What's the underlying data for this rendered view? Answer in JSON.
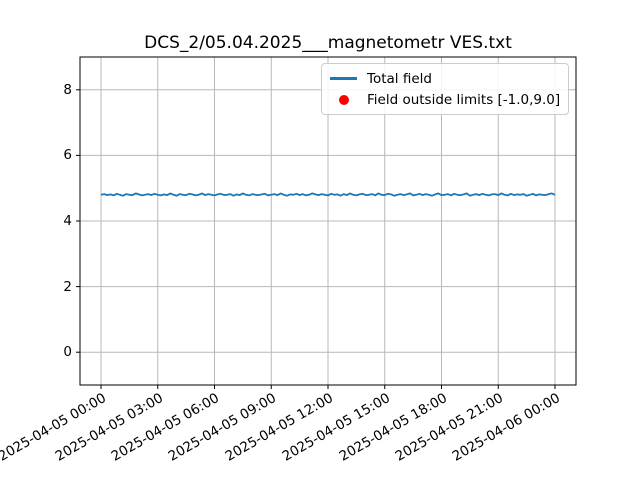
{
  "chart_data": {
    "type": "line",
    "title": "DCS_2/05.04.2025___magnetometr VES.txt",
    "xlabel": "",
    "ylabel": "",
    "grid": true,
    "grid_color": "#b8b8b8",
    "ylim": [
      -1.0,
      9.0
    ],
    "xlim_hours": [
      -1.11,
      25.11
    ],
    "y_ticks": [
      0,
      2,
      4,
      6,
      8
    ],
    "x_tick_hours": [
      0,
      3,
      6,
      9,
      12,
      15,
      18,
      21,
      24
    ],
    "x_tick_labels": [
      "2025-04-05 00:00",
      "2025-04-05 03:00",
      "2025-04-05 06:00",
      "2025-04-05 09:00",
      "2025-04-05 12:00",
      "2025-04-05 15:00",
      "2025-04-05 18:00",
      "2025-04-05 21:00",
      "2025-04-06 00:00"
    ],
    "legend": [
      {
        "label": "Total field",
        "marker": "line",
        "color": "#1f77b4"
      },
      {
        "label": "Field outside limits [-1.0,9.0]",
        "marker": "dot",
        "color": "#ff0000"
      }
    ],
    "series": [
      {
        "name": "Total field",
        "color": "#1f77b4",
        "x_start_hour": 0,
        "x_step_minutes": 10,
        "values": [
          4.8,
          4.82,
          4.79,
          4.81,
          4.78,
          4.83,
          4.8,
          4.77,
          4.82,
          4.8,
          4.79,
          4.84,
          4.81,
          4.78,
          4.8,
          4.82,
          4.79,
          4.83,
          4.8,
          4.78,
          4.81,
          4.79,
          4.84,
          4.8,
          4.77,
          4.82,
          4.8,
          4.79,
          4.83,
          4.81,
          4.78,
          4.8,
          4.84,
          4.79,
          4.82,
          4.8,
          4.78,
          4.81,
          4.83,
          4.79,
          4.8,
          4.82,
          4.77,
          4.81,
          4.79,
          4.84,
          4.8,
          4.78,
          4.82,
          4.8,
          4.79,
          4.81,
          4.83,
          4.78,
          4.8,
          4.82,
          4.79,
          4.84,
          4.8,
          4.77,
          4.81,
          4.8,
          4.83,
          4.79,
          4.82,
          4.78,
          4.8,
          4.84,
          4.81,
          4.79,
          4.82,
          4.8,
          4.78,
          4.83,
          4.8,
          4.81,
          4.77,
          4.82,
          4.79,
          4.84,
          4.8,
          4.78,
          4.81,
          4.83,
          4.79,
          4.8,
          4.82,
          4.78,
          4.84,
          4.8,
          4.79,
          4.83,
          4.81,
          4.77,
          4.8,
          4.82,
          4.79,
          4.81,
          4.84,
          4.78,
          4.8,
          4.83,
          4.79,
          4.82,
          4.8,
          4.77,
          4.81,
          4.84,
          4.79,
          4.8,
          4.82,
          4.78,
          4.83,
          4.8,
          4.79,
          4.81,
          4.84,
          4.77,
          4.8,
          4.82,
          4.79,
          4.83,
          4.8,
          4.78,
          4.81,
          4.82,
          4.79,
          4.84,
          4.8,
          4.78,
          4.83,
          4.79,
          4.81,
          4.8,
          4.82,
          4.77,
          4.8,
          4.83,
          4.78,
          4.81,
          4.8,
          4.79,
          4.82,
          4.84,
          4.8
        ]
      }
    ]
  }
}
